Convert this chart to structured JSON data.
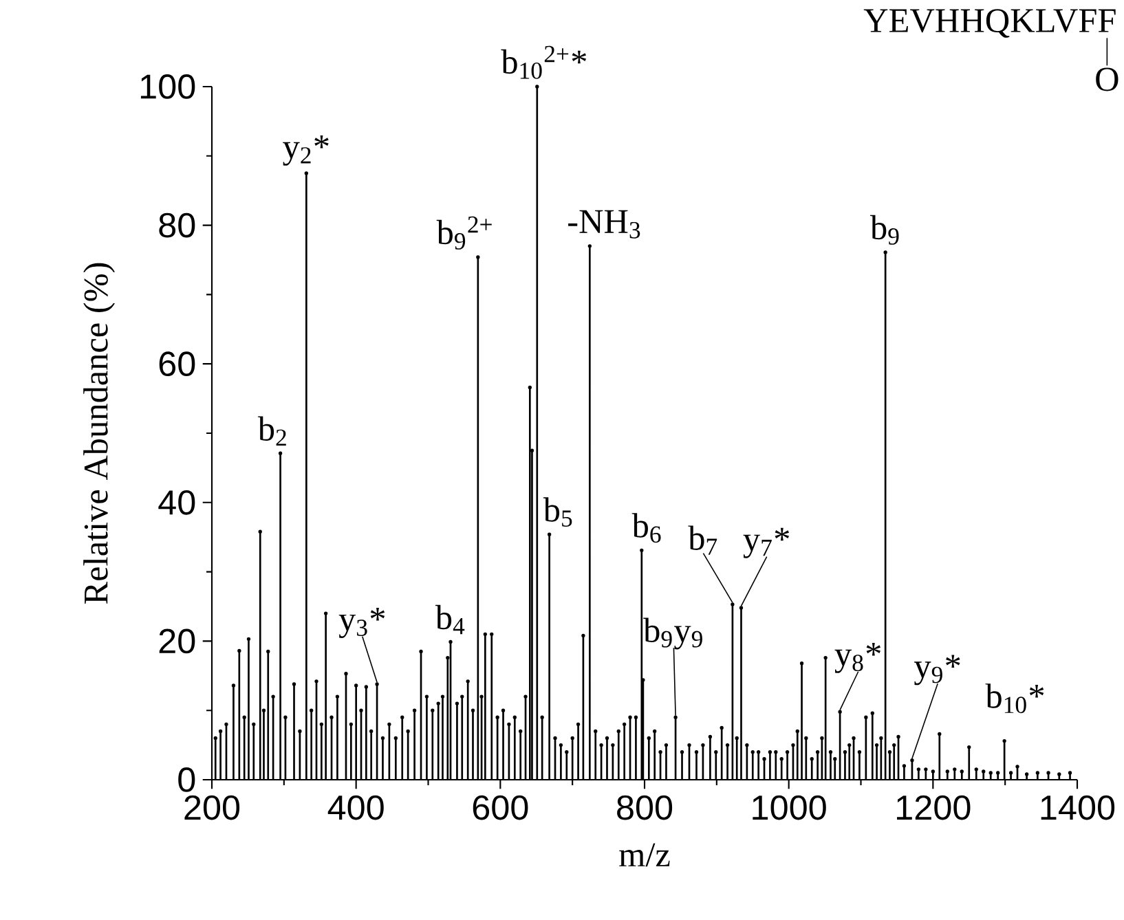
{
  "chart_data": {
    "type": "lollipop",
    "xlabel": "m/z",
    "ylabel": "Relative Abundance (%)",
    "color": "#000000",
    "xlim": [
      200,
      1400
    ],
    "ylim": [
      0,
      100
    ],
    "xticks": [
      200,
      400,
      600,
      800,
      1000,
      1200,
      1400
    ],
    "yticks": [
      0,
      20,
      40,
      60,
      80,
      100
    ],
    "x": [
      205,
      212,
      220,
      230,
      238,
      245,
      251,
      258,
      267,
      272,
      278,
      285,
      295,
      302,
      314,
      322,
      331,
      338,
      345,
      352,
      358,
      366,
      374,
      386,
      393,
      400,
      407,
      414,
      421,
      429,
      437,
      446,
      455,
      464,
      472,
      481,
      490,
      498,
      506,
      514,
      520,
      527,
      531,
      540,
      547,
      555,
      562,
      569,
      574,
      579,
      588,
      596,
      604,
      612,
      620,
      628,
      635,
      641,
      644,
      651,
      658,
      668,
      676,
      684,
      692,
      700,
      708,
      715,
      724,
      732,
      740,
      748,
      756,
      764,
      772,
      780,
      788,
      796,
      798,
      806,
      814,
      822,
      830,
      843,
      852,
      862,
      872,
      881,
      891,
      899,
      907,
      915,
      922,
      928,
      934,
      942,
      950,
      958,
      966,
      974,
      982,
      990,
      998,
      1006,
      1012,
      1018,
      1024,
      1032,
      1040,
      1046,
      1051,
      1058,
      1064,
      1071,
      1078,
      1084,
      1090,
      1098,
      1107,
      1116,
      1122,
      1128,
      1134,
      1140,
      1146,
      1152,
      1160,
      1171,
      1180,
      1190,
      1200,
      1209,
      1220,
      1230,
      1240,
      1250,
      1260,
      1270,
      1280,
      1290,
      1299,
      1308,
      1317,
      1330,
      1345,
      1360,
      1375,
      1390
    ],
    "values": [
      6,
      7,
      8,
      13.6,
      18.6,
      9,
      20.3,
      8,
      35.8,
      10,
      18.5,
      12,
      47.1,
      9,
      13.8,
      7,
      87.5,
      10,
      14.2,
      8,
      24,
      9,
      12,
      15.3,
      8,
      13.6,
      10,
      13.4,
      7,
      13.8,
      6,
      8,
      6,
      9,
      7,
      10,
      18.5,
      12,
      10,
      11,
      12,
      17.6,
      19.9,
      11,
      12,
      14.2,
      10,
      75.4,
      12,
      21,
      21,
      9,
      10,
      8,
      9,
      7,
      12,
      56.6,
      47.5,
      100,
      9,
      35.4,
      6,
      5,
      4,
      6,
      8,
      20.8,
      77,
      7,
      5,
      6,
      5,
      7,
      8,
      9,
      9,
      33.1,
      14.4,
      6,
      7,
      4,
      5,
      9,
      4,
      5,
      4,
      5,
      6.2,
      4,
      7.5,
      5,
      25.3,
      6,
      24.8,
      5,
      4,
      4,
      3,
      4,
      4,
      3,
      4,
      5,
      7,
      16.8,
      6,
      3,
      4,
      6,
      17.6,
      4,
      3,
      9.8,
      4,
      5,
      6,
      4,
      9,
      9.6,
      5,
      6,
      76.1,
      4,
      5,
      6.2,
      2,
      2.8,
      1.5,
      1.5,
      1.2,
      6.6,
      1.2,
      1.5,
      1.2,
      4.7,
      1.5,
      1.2,
      1,
      1,
      5.6,
      1,
      1.9,
      0.8,
      1,
      1,
      0.8,
      1
    ],
    "annotations": [
      {
        "text": "b$_{10}$$^{2+}$*",
        "x": 651,
        "y": 100
      },
      {
        "text": "y$_{2}$*",
        "x": 331,
        "y": 87.5
      },
      {
        "text": "b$_{2}$",
        "x": 295,
        "y": 47.1
      },
      {
        "text": "b$_{9}$$^{2+}$",
        "x": 569,
        "y": 75.4
      },
      {
        "text": "-NH$_{3}$",
        "x": 724,
        "y": 77
      },
      {
        "text": "b$_{5}$",
        "x": 668,
        "y": 35.4
      },
      {
        "text": "b$_{6}$",
        "x": 796,
        "y": 33.1
      },
      {
        "text": "b$_{4}$",
        "x": 531,
        "y": 19.9
      },
      {
        "text": "y$_{3}$*",
        "x": 429,
        "y": 13.8
      },
      {
        "text": "b$_{9}$y$_{9}$",
        "x": 843,
        "y": 9
      },
      {
        "text": "b$_{7}$",
        "x": 922,
        "y": 25.3
      },
      {
        "text": "y$_{7}$*",
        "x": 934,
        "y": 24.8
      },
      {
        "text": "y$_{8}$*",
        "x": 1071,
        "y": 9.8
      },
      {
        "text": "y$_{9}$*",
        "x": 1171,
        "y": 2.8
      },
      {
        "text": "b$_{10}$*",
        "x": 1299,
        "y": 5.6
      },
      {
        "text": "b$_{9}$",
        "x": 1134,
        "y": 76.1
      },
      "YEVHHQKLVFF",
      "O"
    ]
  }
}
